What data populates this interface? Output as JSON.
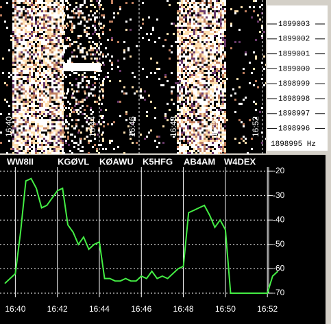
{
  "waterfall": {
    "time_labels": [
      "16:40",
      "16:44",
      "16:46",
      "16:48",
      "16:50",
      "16:52"
    ],
    "freq_labels": [
      "1899003",
      "1899002",
      "1899001",
      "1899000",
      "1898999",
      "1898998",
      "1898997",
      "1898996"
    ],
    "base_label": "1898995 Hz"
  },
  "chart_data": {
    "type": "line",
    "annotations": [
      "WW8II",
      "KGØVL",
      "KØAWU",
      "K5HFG",
      "AB4AM",
      "W4DEX"
    ],
    "x": [
      999.5,
      999.75,
      1000,
      1000.25,
      1000.5,
      1000.75,
      1001,
      1001.25,
      1001.5,
      1001.75,
      1002,
      1002.25,
      1002.5,
      1002.75,
      1003,
      1003.25,
      1003.5,
      1003.75,
      1004,
      1004.25,
      1004.5,
      1004.75,
      1005,
      1005.25,
      1005.5,
      1005.75,
      1006,
      1006.25,
      1006.5,
      1006.75,
      1007,
      1007.25,
      1007.5,
      1007.75,
      1008,
      1008.25,
      1008.5,
      1008.75,
      1009,
      1009.25,
      1009.5,
      1009.75,
      1010,
      1010.25,
      1010.5,
      1010.75,
      1011,
      1011.25,
      1011.5,
      1011.75,
      1012,
      1012.25,
      1012.5
    ],
    "series": [
      {
        "color": "#44ee44",
        "values": [
          -66,
          -64,
          -62,
          -45,
          -24,
          -23,
          -27,
          -35,
          -34,
          -31,
          -28,
          -27,
          -42,
          -45,
          -50,
          -47,
          -52,
          -50,
          -49,
          -64,
          -64,
          -65,
          -65,
          -64,
          -65,
          -65,
          -63,
          -64,
          -61,
          -64,
          -63,
          -64,
          -62,
          -60,
          -59,
          -37,
          -36,
          -35,
          -34,
          -38,
          -43,
          -40,
          -44,
          -70,
          -70,
          -70,
          -70,
          -70,
          -70,
          -70,
          -70,
          -63,
          -61
        ]
      }
    ],
    "xlim": [
      999.27,
      1013.3
    ],
    "ylim": [
      -70,
      -20
    ],
    "xticks": [
      {
        "value": 1000,
        "label": "16:40"
      },
      {
        "value": 1002,
        "label": "16:42"
      },
      {
        "value": 1004,
        "label": "16:44"
      },
      {
        "value": 1006,
        "label": "16:46"
      },
      {
        "value": 1008,
        "label": "16:48"
      },
      {
        "value": 1010,
        "label": "16:50"
      },
      {
        "value": 1012,
        "label": "16:52"
      }
    ],
    "yticks": [
      -20,
      -30,
      -40,
      -50,
      -60,
      -70
    ],
    "grid": true
  }
}
